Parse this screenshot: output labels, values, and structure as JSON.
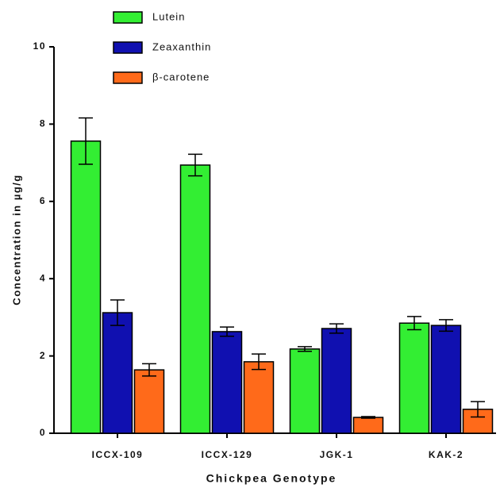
{
  "chart_data": {
    "type": "bar",
    "x_label": "Chickpea Genotype",
    "y_label": "Concentration in µg/g",
    "categories": [
      "ICCX-109",
      "ICCX-129",
      "JGK-1",
      "KAK-2"
    ],
    "series": [
      {
        "name": "Lutein",
        "color": "#33ee33",
        "values": [
          7.56,
          6.94,
          2.18,
          2.85
        ],
        "errors": [
          0.6,
          0.28,
          0.06,
          0.17
        ]
      },
      {
        "name": "Zeaxanthin",
        "color": "#1010b0",
        "values": [
          3.12,
          2.63,
          2.71,
          2.79
        ],
        "errors": [
          0.33,
          0.12,
          0.12,
          0.15
        ]
      },
      {
        "name": "β-carotene",
        "color": "#ff6a1a",
        "values": [
          1.64,
          1.85,
          0.41,
          0.62
        ],
        "errors": [
          0.16,
          0.2,
          0.02,
          0.2
        ]
      }
    ],
    "ylim": [
      0,
      10
    ],
    "yticks": [
      0,
      2,
      4,
      6,
      8,
      10
    ],
    "legend": "top-left"
  }
}
